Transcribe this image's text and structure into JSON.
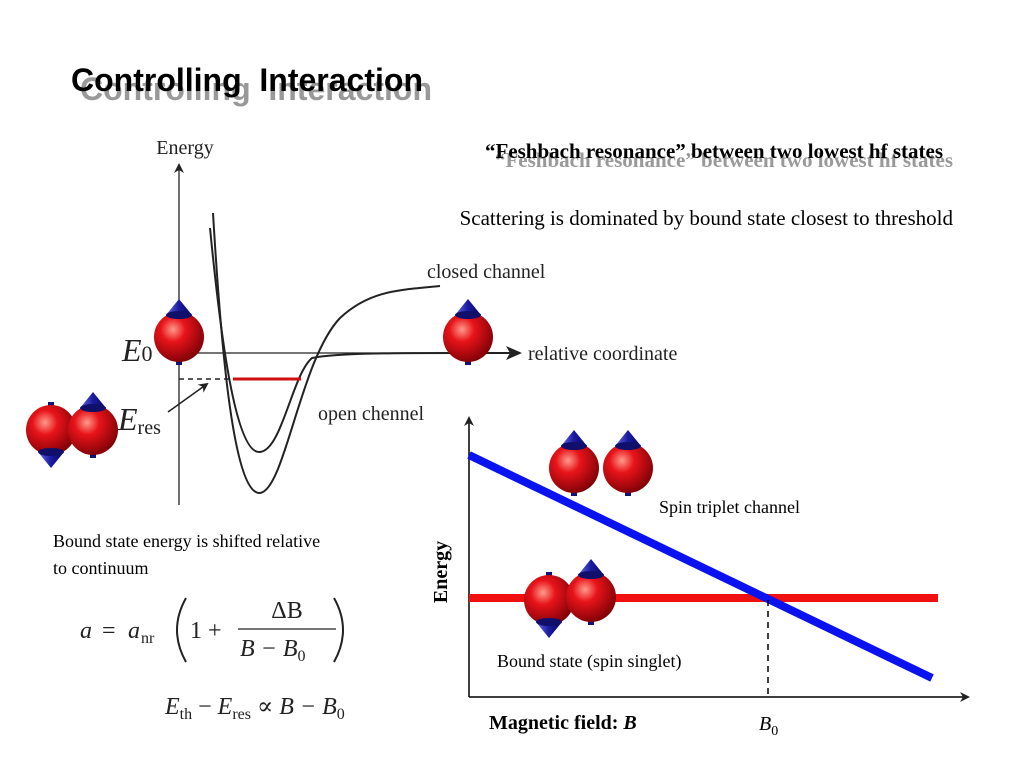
{
  "title": "Controlling  Interaction",
  "subtitle": "“Feshbach resonance” between two lowest hf states",
  "statement": "Scattering is dominated by bound state closest to threshold",
  "potential_diagram": {
    "axis_label": "Energy",
    "closed_label": "closed channel",
    "open_label": "open chennel",
    "x_label": "relative coordinate",
    "e0": {
      "symbol": "E",
      "sub": "0"
    },
    "eres": {
      "symbol": "E",
      "sub": "res"
    }
  },
  "note_lines": [
    "Bound state energy is shifted relative",
    "to continuum"
  ],
  "formula_1": {
    "lhs": "a",
    "eq": "=",
    "rhs": "a",
    "rhs_sub": "nr",
    "lead": "1 +",
    "num": "ΔB",
    "den": "B − B",
    "den_sub": "0"
  },
  "formula_2": {
    "e1": "E",
    "e1_sub": "th",
    "minus": "−",
    "e2": "E",
    "e2_sub": "res",
    "rest": "∝ B − B",
    "rest_sub": "0"
  },
  "field_diagram": {
    "y_label": "Energy",
    "triplet_label": "Spin triplet channel",
    "singlet_label": "Bound state (spin singlet)",
    "x_label": "Magnetic field: ",
    "x_symbol": "B",
    "b0": {
      "symbol": "B",
      "sub": "0"
    }
  }
}
